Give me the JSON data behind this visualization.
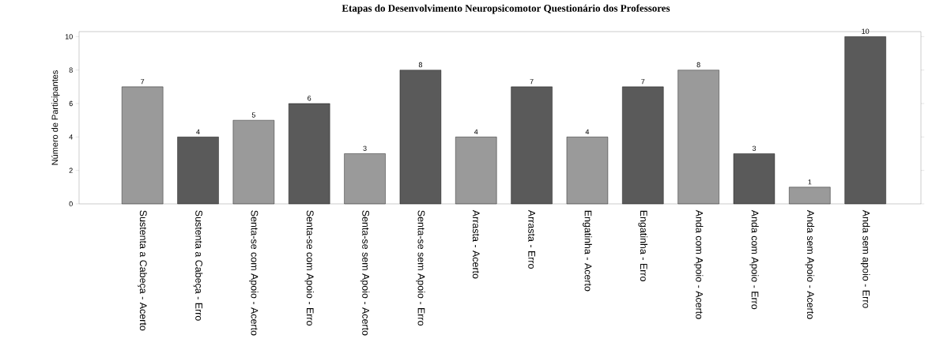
{
  "chart_data": {
    "type": "bar",
    "title": "Etapas do Desenvolvimento Neuropsicomotor Questionário dos Professores",
    "ylabel": "Número de Participantes",
    "categories": [
      "Sustenta a Cabeça - Acerto",
      "Sustenta a Cabeça - Erro",
      "Senta-se com Apoio - Acerto",
      "Senta-se com Apoio - Erro",
      "Senta-se sem Apoio - Acerto",
      "Senta-se sem Apoio - Erro",
      "Arrasta - Acerto",
      "Arrasta - Erro",
      "Engatinha - Acerto",
      "Engatinha - Erro",
      "Anda com Apoio - Acerto",
      "Anda com Apoio - Erro",
      "Anda sem Apoio - Acerto",
      "Anda sem apoio - Erro"
    ],
    "values": [
      7,
      4,
      5,
      6,
      3,
      8,
      4,
      7,
      4,
      7,
      8,
      3,
      1,
      10
    ],
    "colors": [
      "#9a9a9a",
      "#5a5a5a",
      "#9a9a9a",
      "#5a5a5a",
      "#9a9a9a",
      "#5a5a5a",
      "#9a9a9a",
      "#5a5a5a",
      "#9a9a9a",
      "#5a5a5a",
      "#9a9a9a",
      "#5a5a5a",
      "#9a9a9a",
      "#5a5a5a"
    ],
    "ylim": [
      0,
      10.3
    ],
    "yticks": [
      0,
      2,
      4,
      6,
      8,
      10
    ],
    "data_labels": true
  }
}
